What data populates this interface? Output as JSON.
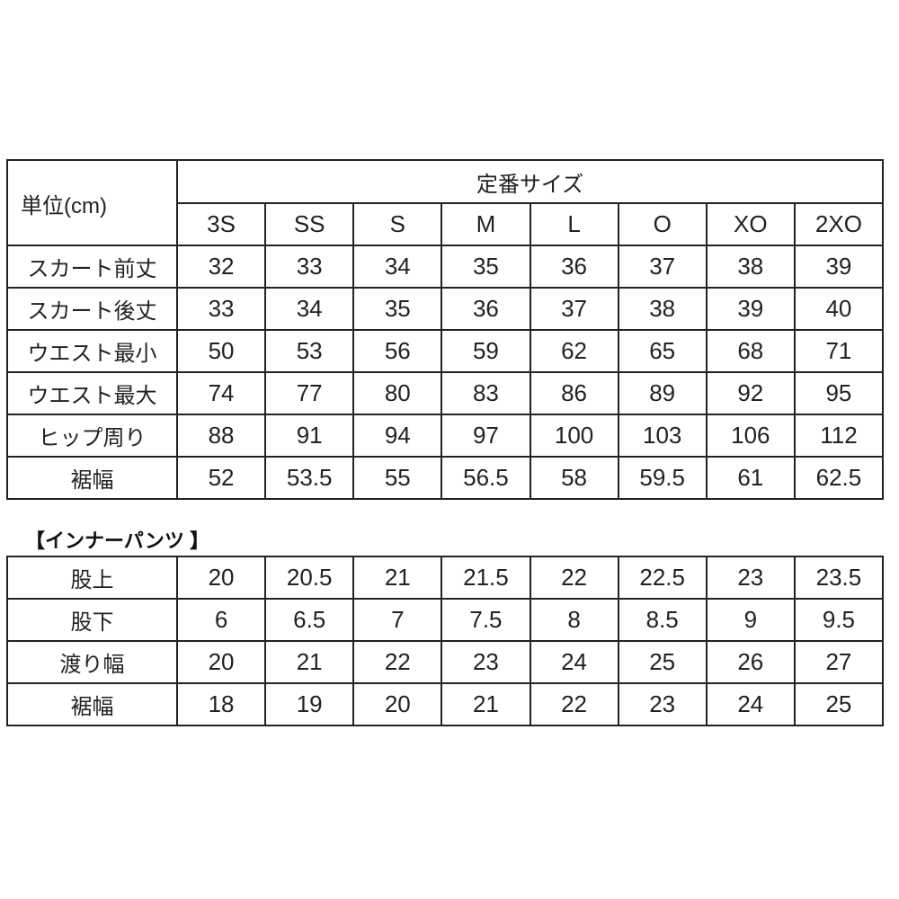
{
  "unit_label": "単位(cm)",
  "group_header": "定番サイズ",
  "sizes": [
    "3S",
    "SS",
    "S",
    "M",
    "L",
    "O",
    "XO",
    "2XO"
  ],
  "skirt_rows": [
    {
      "label": "スカート前丈",
      "values": [
        "32",
        "33",
        "34",
        "35",
        "36",
        "37",
        "38",
        "39"
      ]
    },
    {
      "label": "スカート後丈",
      "values": [
        "33",
        "34",
        "35",
        "36",
        "37",
        "38",
        "39",
        "40"
      ]
    },
    {
      "label": "ウエスト最小",
      "values": [
        "50",
        "53",
        "56",
        "59",
        "62",
        "65",
        "68",
        "71"
      ]
    },
    {
      "label": "ウエスト最大",
      "values": [
        "74",
        "77",
        "80",
        "83",
        "86",
        "89",
        "92",
        "95"
      ]
    },
    {
      "label": "ヒップ周り",
      "values": [
        "88",
        "91",
        "94",
        "97",
        "100",
        "103",
        "106",
        "112"
      ]
    },
    {
      "label": "裾幅",
      "values": [
        "52",
        "53.5",
        "55",
        "56.5",
        "58",
        "59.5",
        "61",
        "62.5"
      ]
    }
  ],
  "inner_title": "【インナーパンツ 】",
  "inner_rows": [
    {
      "label": "股上",
      "values": [
        "20",
        "20.5",
        "21",
        "21.5",
        "22",
        "22.5",
        "23",
        "23.5"
      ]
    },
    {
      "label": "股下",
      "values": [
        "6",
        "6.5",
        "7",
        "7.5",
        "8",
        "8.5",
        "9",
        "9.5"
      ]
    },
    {
      "label": "渡り幅",
      "values": [
        "20",
        "21",
        "22",
        "23",
        "24",
        "25",
        "26",
        "27"
      ]
    },
    {
      "label": "裾幅",
      "values": [
        "18",
        "19",
        "20",
        "21",
        "22",
        "23",
        "24",
        "25"
      ]
    }
  ]
}
